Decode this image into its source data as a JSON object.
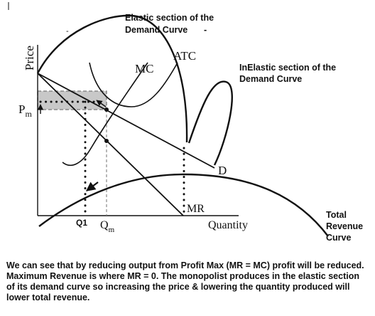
{
  "axes": {
    "y_label": "Price",
    "x_label": "Quantity"
  },
  "curves": {
    "mc": "MC",
    "atc": "ATC",
    "demand": "D",
    "mr": "MR"
  },
  "ticks": {
    "pm": "P",
    "pm_sub": "m",
    "qm": "Q",
    "qm_sub": "m",
    "q1": "Q1"
  },
  "annotations": {
    "elastic_line1": "Elastic section of the",
    "elastic_line2": "Demand Curve",
    "elastic_dash": "-",
    "inelastic_line1": "InElastic section of the",
    "inelastic_line2": "Demand Curve",
    "total_line1": "Total",
    "total_line2": "Revenue",
    "total_line3": "Curve",
    "stray_dash": "-"
  },
  "caption": "We can see that by reducing output from Profit Max (MR = MC) profit will be reduced. Maximum Revenue is where MR = 0. The monopolist produces in the elastic section of its demand curve so increasing the price & lowering the quantity produced will lower total revenue."
}
